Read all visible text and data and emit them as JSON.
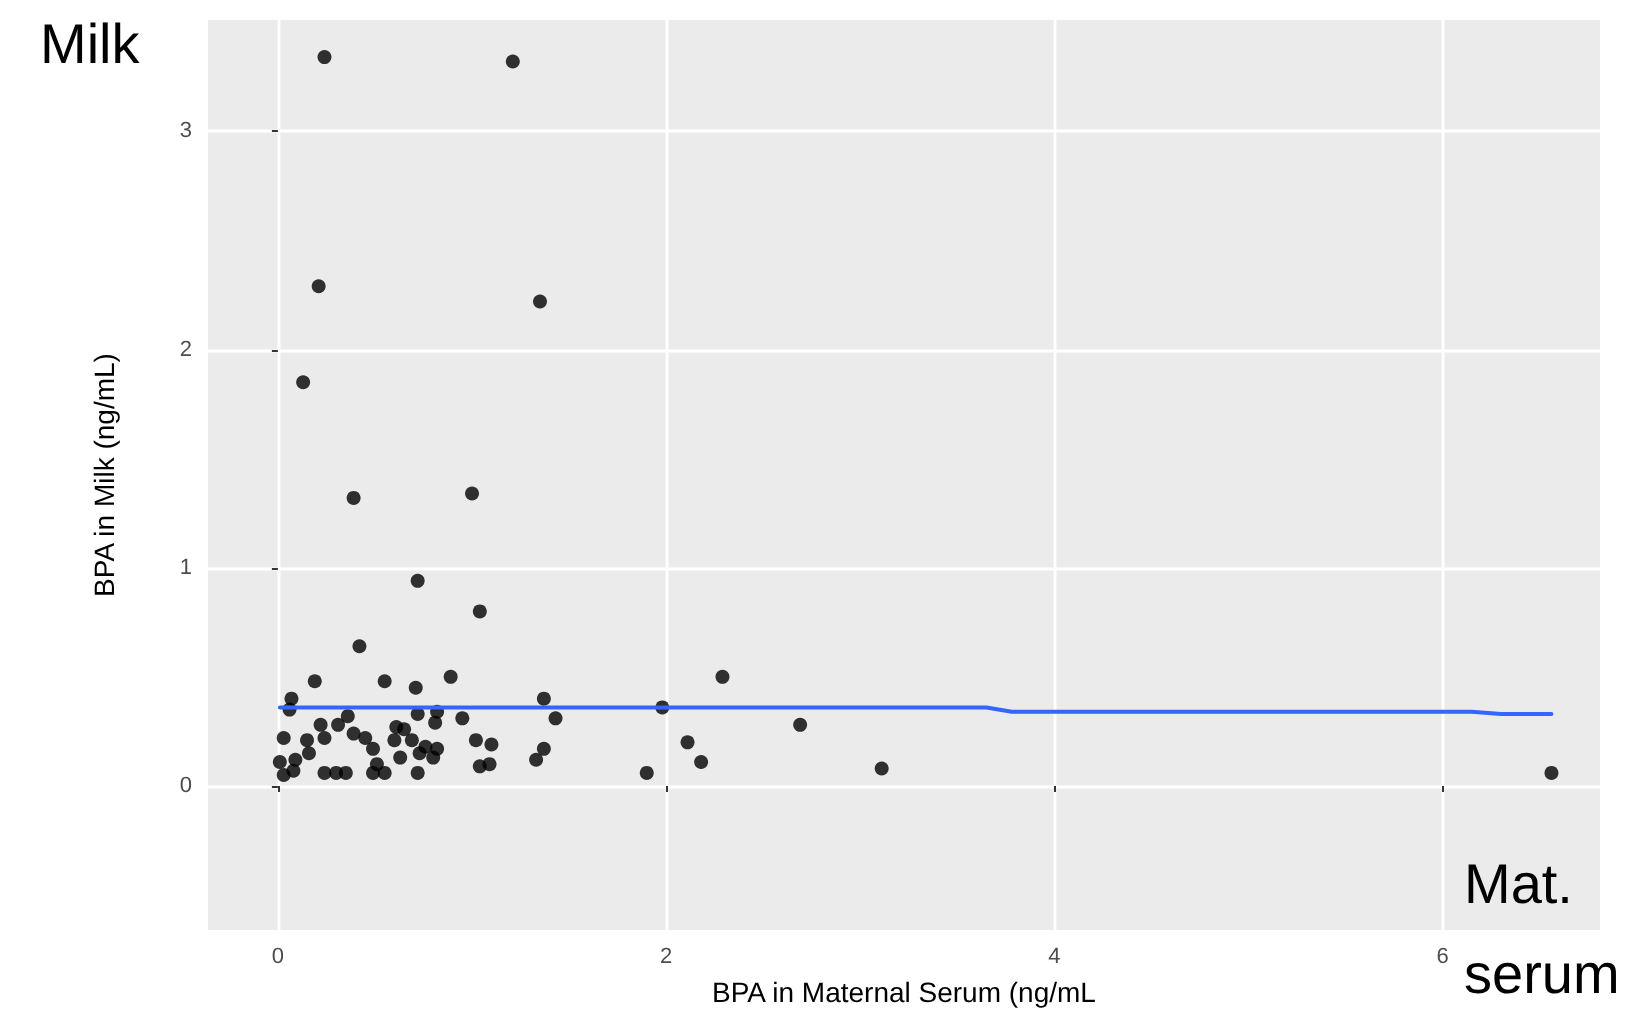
{
  "chart_data": {
    "type": "scatter",
    "xlabel": "BPA in Maternal Serum (ng/mL",
    "ylabel": "BPA in Milk (ng/mL)",
    "annotations": [
      "Milk",
      "Mat.",
      "serum"
    ],
    "xlim": [
      -0.36,
      6.81
    ],
    "ylim": [
      -0.66,
      3.51
    ],
    "xticks": [
      0,
      2,
      4,
      6
    ],
    "yticks": [
      0,
      1,
      2,
      3
    ],
    "grid": true,
    "marker": "circle",
    "series": [
      {
        "color": "#000000",
        "x": [
          0.24,
          1.21,
          0.21,
          1.35,
          0.13,
          0.39,
          1.0,
          0.72,
          1.04,
          0.42,
          0.19,
          0.55,
          0.71,
          0.89,
          0.07,
          1.37,
          1.43,
          0.06,
          0.72,
          0.82,
          0.81,
          0.95,
          0.22,
          0.36,
          0.31,
          0.03,
          0.15,
          0.24,
          0.39,
          0.45,
          0.61,
          0.65,
          0.6,
          0.69,
          0.76,
          0.82,
          1.02,
          1.1,
          1.37,
          0.01,
          0.09,
          0.16,
          0.49,
          0.51,
          0.63,
          0.73,
          0.8,
          1.04,
          1.09,
          1.33,
          0.03,
          0.08,
          0.24,
          0.3,
          0.35,
          0.49,
          0.55,
          0.72,
          1.9,
          1.98,
          2.11,
          2.18,
          2.29,
          2.69,
          3.11,
          6.56
        ],
        "values": [
          3.34,
          3.32,
          2.29,
          2.22,
          1.85,
          1.32,
          1.34,
          0.94,
          0.8,
          0.64,
          0.48,
          0.48,
          0.45,
          0.5,
          0.4,
          0.4,
          0.31,
          0.35,
          0.33,
          0.34,
          0.29,
          0.31,
          0.28,
          0.32,
          0.28,
          0.22,
          0.21,
          0.22,
          0.24,
          0.22,
          0.27,
          0.26,
          0.21,
          0.21,
          0.18,
          0.17,
          0.21,
          0.19,
          0.17,
          0.11,
          0.12,
          0.15,
          0.17,
          0.1,
          0.13,
          0.15,
          0.13,
          0.09,
          0.1,
          0.12,
          0.05,
          0.07,
          0.06,
          0.06,
          0.06,
          0.06,
          0.06,
          0.06,
          0.06,
          0.36,
          0.2,
          0.11,
          0.5,
          0.28,
          0.08,
          0.06
        ]
      },
      {
        "type": "line",
        "color": "#3366ff",
        "marker": "none",
        "x": [
          0.01,
          3.65,
          3.78,
          6.15,
          6.3,
          6.56
        ],
        "values": [
          0.36,
          0.36,
          0.34,
          0.34,
          0.33,
          0.33
        ]
      }
    ]
  }
}
